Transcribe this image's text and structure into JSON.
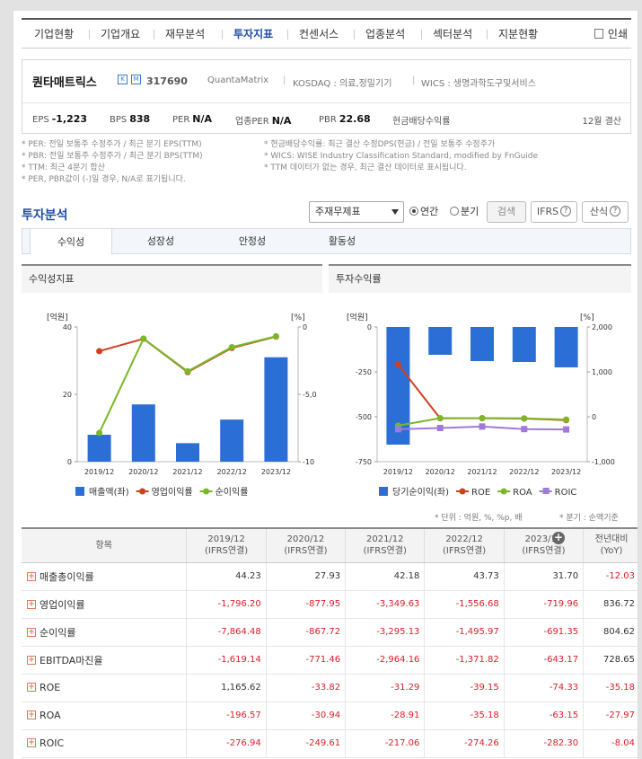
{
  "nav": {
    "tabs": [
      "기업현황",
      "기업개요",
      "재무분석",
      "투자지표",
      "컨센서스",
      "업종분석",
      "섹터분석",
      "지분현황"
    ],
    "active": 3,
    "print_label": "인쇄"
  },
  "company": {
    "name": "퀀타매트릭스",
    "code": "317690",
    "eng_name": "QuantaMatrix",
    "market": "KOSDAQ : 의료,정밀기기",
    "wics": "WICS : 생명과학도구및서비스",
    "icon1": "K",
    "icon2": "M"
  },
  "fin_indicators": [
    {
      "label": "EPS",
      "value": "-1,223"
    },
    {
      "label": "BPS",
      "value": "838"
    },
    {
      "label": "PER",
      "value": "N/A"
    },
    {
      "label": "업종PER",
      "value": "N/A"
    },
    {
      "label": "PBR",
      "value": "22.68"
    },
    {
      "label": "현금배당수익률",
      "value": ""
    }
  ],
  "settlement": "12월 결산",
  "notes_left": [
    "* PER: 전일 보통주 수정주가 / 최근 분기 EPS(TTM)",
    "* PBR: 전일 보통주 수정주가 / 최근 분기 BPS(TTM)",
    "* TTM: 최근 4분기 합산",
    "* PER, PBR값이 (-)일 경우, N/A로 표기됩니다."
  ],
  "notes_right": [
    "* 현금배당수익률: 최근 결산 수정DPS(현금) / 전일 보통주 수정주가",
    "* WICS: WISE Industry Classification Standard, modified by FnGuide",
    "* TTM 데이터가 없는 경우, 최근 결산 데이터로 표시됩니다."
  ],
  "analysis": {
    "title": "투자분석",
    "select_value": "주재무제표",
    "radio_annual": "연간",
    "radio_quarter": "분기",
    "search_btn": "검색",
    "ifrs_btn": "IFRS",
    "formula_btn": "산식",
    "help_icon": "?"
  },
  "subtabs": [
    "수익성",
    "성장성",
    "안정성",
    "활동성"
  ],
  "subtab_active": 0,
  "chart_left": {
    "header": "수익성지표"
  },
  "chart_right": {
    "header": "투자수익률"
  },
  "chart_data": [
    {
      "type": "bar+line",
      "title": "수익성지표",
      "categories": [
        "2019/12",
        "2020/12",
        "2021/12",
        "2022/12",
        "2023/12"
      ],
      "left_unit": "[억원]",
      "right_unit": "[%]",
      "left_ylim": [
        0,
        40
      ],
      "left_ticks": [
        "40",
        "20",
        "0"
      ],
      "right_ticks": [
        "0",
        "-5,0",
        "-10"
      ],
      "series": [
        {
          "name": "매출액(좌)",
          "type": "bar",
          "axis": "left",
          "color": "#2b6fd6",
          "values": [
            8,
            17,
            5.5,
            12.5,
            31
          ]
        },
        {
          "name": "영업이익률",
          "type": "line",
          "axis": "right",
          "color": "#d0401f",
          "values": [
            -1796.2,
            -877.95,
            -3349.63,
            -1556.68,
            -719.96
          ]
        },
        {
          "name": "순이익률",
          "type": "line",
          "axis": "right",
          "color": "#7ab827",
          "values": [
            -7864.48,
            -867.72,
            -3295.13,
            -1495.97,
            -691.35
          ]
        }
      ],
      "legend": "bottom"
    },
    {
      "type": "bar+line",
      "title": "투자수익률",
      "categories": [
        "2019/12",
        "2020/12",
        "2021/12",
        "2022/12",
        "2023/12"
      ],
      "left_unit": "[억원]",
      "right_unit": "[%]",
      "left_ylim": [
        -750,
        0
      ],
      "right_ylim": [
        -1000,
        2000
      ],
      "left_ticks": [
        "0",
        "-250",
        "-500",
        "-750"
      ],
      "right_ticks": [
        "2,000",
        "1,000",
        "0",
        "-1,000"
      ],
      "series": [
        {
          "name": "당기순이익(좌)",
          "type": "bar",
          "axis": "left",
          "color": "#2b6fd6",
          "values": [
            -655,
            -155,
            -190,
            -195,
            -225
          ]
        },
        {
          "name": "ROE",
          "type": "line",
          "axis": "right",
          "color": "#d0401f",
          "values": [
            1165.62,
            -33.82,
            -31.29,
            -39.15,
            -74.33
          ]
        },
        {
          "name": "ROA",
          "type": "line",
          "axis": "right",
          "color": "#7ab827",
          "values": [
            -196.57,
            -30.94,
            -28.91,
            -35.18,
            -63.15
          ]
        },
        {
          "name": "ROIC",
          "type": "line",
          "axis": "right",
          "color": "#a07ad8",
          "values": [
            -276.94,
            -249.61,
            -217.06,
            -274.26,
            -282.3
          ]
        }
      ],
      "legend": "bottom"
    }
  ],
  "unit_note": "* 단위 : 억원, %, %p, 배",
  "quarter_note": "* 분기 : 순액기준",
  "table": {
    "header_item": "항목",
    "columns": [
      {
        "year": "2019/12",
        "sub": "(IFRS연결)"
      },
      {
        "year": "2020/12",
        "sub": "(IFRS연결)"
      },
      {
        "year": "2021/12",
        "sub": "(IFRS연결)"
      },
      {
        "year": "2022/12",
        "sub": "(IFRS연결)"
      },
      {
        "year": "2023/12",
        "sub": "(IFRS연결)"
      },
      {
        "year": "전년대비",
        "sub": "(YoY)"
      }
    ],
    "rows": [
      {
        "label": "매출총이익률",
        "values": [
          "44.23",
          "27.93",
          "42.18",
          "43.73",
          "31.70",
          "-12.03"
        ]
      },
      {
        "label": "영업이익률",
        "values": [
          "-1,796.20",
          "-877.95",
          "-3,349.63",
          "-1,556.68",
          "-719.96",
          "836.72"
        ]
      },
      {
        "label": "순이익률",
        "values": [
          "-7,864.48",
          "-867.72",
          "-3,295.13",
          "-1,495.97",
          "-691.35",
          "804.62"
        ]
      },
      {
        "label": "EBITDA마진율",
        "values": [
          "-1,619.14",
          "-771.46",
          "-2,964.16",
          "-1,371.82",
          "-643.17",
          "728.65"
        ]
      },
      {
        "label": "ROE",
        "values": [
          "1,165.62",
          "-33.82",
          "-31.29",
          "-39.15",
          "-74.33",
          "-35.18"
        ]
      },
      {
        "label": "ROA",
        "values": [
          "-196.57",
          "-30.94",
          "-28.91",
          "-35.18",
          "-63.15",
          "-27.97"
        ]
      },
      {
        "label": "ROIC",
        "values": [
          "-276.94",
          "-249.61",
          "-217.06",
          "-274.26",
          "-282.30",
          "-8.04"
        ]
      }
    ]
  }
}
